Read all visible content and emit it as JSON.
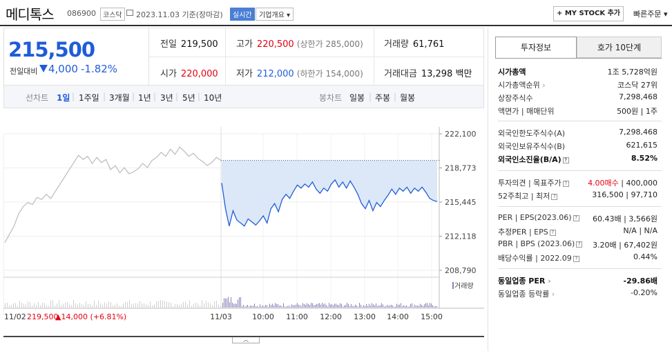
{
  "header": {
    "name": "메디톡스",
    "code": "086900",
    "market": "코스닥",
    "date": "2023.11.03",
    "basis": "기준(장마감)",
    "live": "실시간",
    "company_info": "기업개요",
    "mystock": "+ MY STOCK 추가",
    "quick_order": "빠른주문"
  },
  "price": {
    "current": "215,500",
    "change_label": "전일대비",
    "change": "4,000",
    "change_pct": "-1.82%"
  },
  "summary": {
    "prev_label": "전일",
    "prev": "219,500",
    "high_label": "고가",
    "high": "220,500",
    "upper_limit": "(상한가 285,000)",
    "volume_label": "거래량",
    "volume": "61,761",
    "open_label": "시가",
    "open": "220,000",
    "low_label": "저가",
    "low": "212,000",
    "lower_limit": "(하한가 154,000)",
    "amount_label": "거래대금",
    "amount": "13,298",
    "amount_unit": "백만"
  },
  "periods": {
    "line_label": "선차트",
    "items": [
      "1일",
      "1주일",
      "3개월",
      "1년",
      "3년",
      "5년",
      "10년"
    ],
    "active": "1일",
    "candle_label": "봉차트",
    "candles": [
      "일봉",
      "주봉",
      "월봉"
    ]
  },
  "chart_data": {
    "type": "line",
    "y_ticks": [
      "222,100",
      "218,773",
      "215,445",
      "212,118",
      "208,790"
    ],
    "ylim": [
      208790,
      222100
    ],
    "prev_close": 219500,
    "volume_label": "거래량",
    "prev_day_label": "11/02",
    "prev_day_close": "219,500",
    "prev_day_change": "▲14,000 (+6.81%)",
    "x_ticks": [
      "11/03",
      "10:00",
      "11:00",
      "12:00",
      "13:00",
      "14:00",
      "15:00"
    ],
    "colors": {
      "prev_line": "#bbbbbb",
      "today_line": "#1f5cd9",
      "fill": "#dce8f8",
      "volume": "#8a7fb8"
    },
    "prev_series": [
      211500,
      212300,
      213100,
      214300,
      215000,
      215400,
      215200,
      215900,
      215700,
      216200,
      215800,
      216500,
      217200,
      217900,
      218600,
      219300,
      220000,
      219600,
      219900,
      219200,
      219800,
      219300,
      219600,
      218600,
      219000,
      218300,
      218800,
      218200,
      218400,
      218700,
      219200,
      218800,
      219500,
      219800,
      220300,
      219900,
      220600,
      220100,
      220800,
      220400,
      219900,
      220200,
      219700,
      219400,
      219000,
      219300,
      219800,
      219500
    ],
    "today_series": [
      217300,
      214800,
      213100,
      214600,
      213700,
      213400,
      213100,
      213800,
      213500,
      213200,
      213600,
      214100,
      213400,
      214800,
      215300,
      214500,
      215700,
      216200,
      215800,
      216500,
      217100,
      216800,
      217200,
      216900,
      217400,
      216700,
      216300,
      216800,
      216500,
      217200,
      217600,
      216900,
      217400,
      216800,
      217500,
      216900,
      216200,
      215300,
      214800,
      215600,
      214600,
      215400,
      215000,
      215600,
      216100,
      216700,
      216200,
      216800,
      216500,
      216900,
      216300,
      216800,
      216500,
      216900,
      216400,
      215800,
      215600,
      215500
    ]
  },
  "side": {
    "tab_info": "투자정보",
    "tab_quotes": "호가 10단계",
    "market_cap_label": "시가총액",
    "market_cap": "1조 5,728억원",
    "rank_label": "시가총액순위",
    "rank": "코스닥 27위",
    "shares_label": "상장주식수",
    "shares": "7,298,468",
    "par_label": "액면가 | 매매단위",
    "par": "500원 | 1주",
    "foreign_limit_label": "외국인한도주식수(A)",
    "foreign_limit": "7,298,468",
    "foreign_hold_label": "외국인보유주식수(B)",
    "foreign_hold": "621,615",
    "foreign_ratio_label": "외국인소진율(B/A)",
    "foreign_ratio": "8.52%",
    "opinion_label": "투자의견 | 목표주가",
    "opinion": "4.00매수",
    "target": "400,000",
    "range_label": "52주최고 | 최저",
    "high52": "316,500",
    "low52": "97,710",
    "per_label": "PER | EPS(2023.06)",
    "per": "60.43배",
    "eps": "3,566원",
    "est_per_label": "추정PER | EPS",
    "est_per": "N/A",
    "est_eps": "N/A",
    "pbr_label": "PBR | BPS (2023.06)",
    "pbr": "3.20배",
    "bps": "67,402원",
    "div_label": "배당수익률",
    "div_date": "2022.09",
    "div": "0.44%",
    "ind_per_label": "동일업종 PER",
    "ind_per": "-29.86배",
    "ind_chg_label": "동일업종 등락률",
    "ind_chg": "-0.20%"
  }
}
